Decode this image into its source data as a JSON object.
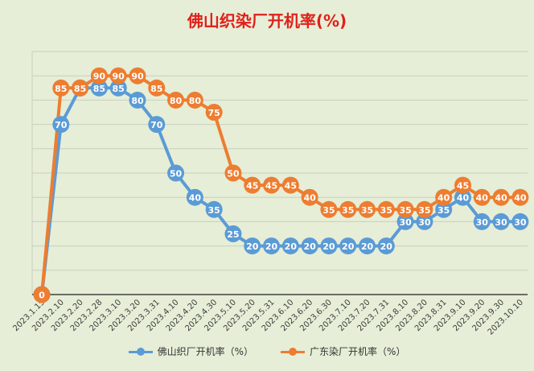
{
  "chart_data": {
    "type": "line",
    "title": "佛山织染厂开机率(%)",
    "categories": [
      "2023.1.15",
      "2023.2.10",
      "2023.2.20",
      "2023.2.28",
      "2023.3.10",
      "2023.3.20",
      "2023.3.31",
      "2023.4.10",
      "2023.4.20",
      "2023.4.30",
      "2023.5.10",
      "2023.5.20",
      "2023.5.31",
      "2023.6.10",
      "2023.6.20",
      "2023.6.30",
      "2023.7.10",
      "2023.7.20",
      "2023.7.31",
      "2023.8.10",
      "2023.8.20",
      "2023.8.31",
      "2023.9.10",
      "2023.9.20",
      "2023.9.30",
      "2023.10.10"
    ],
    "series": [
      {
        "name": "佛山织厂开机率（%）",
        "color": "#5b9bd5",
        "values": [
          0,
          70,
          85,
          85,
          85,
          80,
          70,
          50,
          40,
          35,
          25,
          20,
          20,
          20,
          20,
          20,
          20,
          20,
          20,
          30,
          30,
          35,
          40,
          30,
          30,
          30
        ]
      },
      {
        "name": "广东染厂开机率（%）",
        "color": "#ed7d31",
        "values": [
          0,
          85,
          85,
          90,
          90,
          90,
          85,
          80,
          80,
          75,
          50,
          45,
          45,
          45,
          40,
          35,
          35,
          35,
          35,
          35,
          35,
          40,
          45,
          40,
          40,
          40
        ]
      }
    ],
    "ylim": [
      0,
      100
    ],
    "grid": true,
    "legend_position": "bottom"
  }
}
